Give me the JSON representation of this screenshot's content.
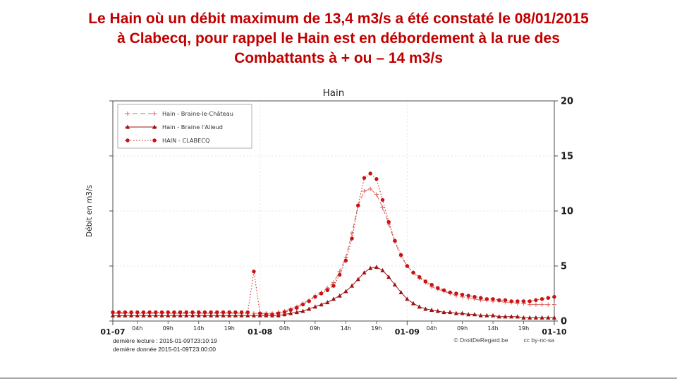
{
  "slide": {
    "title_lines": [
      "Le Hain où un débit maximum de 13,4 m3/s a été constaté le 08/01/2015",
      "à Clabecq, pour rappel le Hain est en débordement à la rue des",
      "Combattants à + ou – 14 m3/s"
    ],
    "title_color": "#C00000"
  },
  "chart_data": {
    "type": "line",
    "title": "Hain",
    "ylabel": "Débit en m3/s",
    "ylim": [
      0,
      20
    ],
    "yticks": [
      0,
      5,
      10,
      15,
      20
    ],
    "xlim": [
      0,
      72
    ],
    "x_unit": "hours from 2015-01-07 00:00",
    "grid": true,
    "legend_position": "top-left",
    "x_major_ticks": [
      {
        "x": 0,
        "label": "01-07"
      },
      {
        "x": 24,
        "label": "01-08"
      },
      {
        "x": 48,
        "label": "01-09"
      },
      {
        "x": 72,
        "label": "01-10"
      }
    ],
    "x_minor_ticks": [
      {
        "x": 4,
        "label": "04h"
      },
      {
        "x": 9,
        "label": "09h"
      },
      {
        "x": 14,
        "label": "14h"
      },
      {
        "x": 19,
        "label": "19h"
      },
      {
        "x": 28,
        "label": "04h"
      },
      {
        "x": 33,
        "label": "09h"
      },
      {
        "x": 38,
        "label": "14h"
      },
      {
        "x": 43,
        "label": "19h"
      },
      {
        "x": 52,
        "label": "04h"
      },
      {
        "x": 57,
        "label": "09h"
      },
      {
        "x": 62,
        "label": "14h"
      },
      {
        "x": 67,
        "label": "19h"
      }
    ],
    "x": [
      0,
      1,
      2,
      3,
      4,
      5,
      6,
      7,
      8,
      9,
      10,
      11,
      12,
      13,
      14,
      15,
      16,
      17,
      18,
      19,
      20,
      21,
      22,
      23,
      24,
      25,
      26,
      27,
      28,
      29,
      30,
      31,
      32,
      33,
      34,
      35,
      36,
      37,
      38,
      39,
      40,
      41,
      42,
      43,
      44,
      45,
      46,
      47,
      48,
      49,
      50,
      51,
      52,
      53,
      54,
      55,
      56,
      57,
      58,
      59,
      60,
      61,
      62,
      63,
      64,
      65,
      66,
      67,
      68,
      69,
      70,
      71,
      72
    ],
    "series": [
      {
        "name": "Hain - Braine-le-Château",
        "color": "#dd6a66",
        "marker": "plus",
        "line_style": "dashed",
        "values": [
          0.7,
          0.7,
          0.7,
          0.7,
          0.7,
          0.7,
          0.7,
          0.7,
          0.7,
          0.7,
          0.7,
          0.7,
          0.7,
          0.7,
          0.7,
          0.7,
          0.7,
          0.7,
          0.7,
          0.7,
          0.7,
          0.7,
          0.7,
          0.7,
          0.7,
          0.7,
          0.7,
          0.8,
          0.9,
          1.1,
          1.3,
          1.6,
          1.9,
          2.3,
          2.6,
          3.0,
          3.5,
          4.5,
          5.8,
          8.0,
          10.5,
          11.8,
          12.0,
          11.5,
          10.3,
          8.8,
          7.2,
          5.9,
          5.0,
          4.4,
          3.9,
          3.5,
          3.1,
          2.9,
          2.7,
          2.5,
          2.3,
          2.2,
          2.1,
          2.0,
          1.9,
          1.9,
          1.8,
          1.8,
          1.7,
          1.7,
          1.6,
          1.6,
          1.5,
          1.5,
          1.5,
          1.5,
          1.5
        ]
      },
      {
        "name": "Hain - Braine l'Alleud",
        "color": "#9b1313",
        "marker": "triangle",
        "line_style": "solid",
        "values": [
          0.5,
          0.5,
          0.5,
          0.5,
          0.5,
          0.5,
          0.5,
          0.5,
          0.5,
          0.5,
          0.5,
          0.5,
          0.5,
          0.5,
          0.5,
          0.5,
          0.5,
          0.5,
          0.5,
          0.5,
          0.5,
          0.5,
          0.5,
          0.5,
          0.5,
          0.5,
          0.5,
          0.5,
          0.6,
          0.7,
          0.8,
          0.9,
          1.1,
          1.3,
          1.5,
          1.7,
          2.0,
          2.3,
          2.7,
          3.2,
          3.8,
          4.4,
          4.8,
          4.9,
          4.6,
          4.0,
          3.3,
          2.6,
          2.0,
          1.6,
          1.3,
          1.1,
          1.0,
          0.9,
          0.8,
          0.8,
          0.7,
          0.7,
          0.6,
          0.6,
          0.5,
          0.5,
          0.5,
          0.4,
          0.4,
          0.4,
          0.4,
          0.3,
          0.3,
          0.3,
          0.3,
          0.3,
          0.3
        ]
      },
      {
        "name": "HAIN - CLABECQ",
        "color": "#cc1111",
        "marker": "circle",
        "line_style": "dotted",
        "values": [
          0.8,
          0.8,
          0.8,
          0.8,
          0.8,
          0.8,
          0.8,
          0.8,
          0.8,
          0.8,
          0.8,
          0.8,
          0.8,
          0.8,
          0.8,
          0.8,
          0.8,
          0.8,
          0.8,
          0.8,
          0.8,
          0.8,
          0.8,
          4.5,
          0.7,
          0.6,
          0.6,
          0.7,
          0.8,
          1.0,
          1.2,
          1.5,
          1.8,
          2.2,
          2.5,
          2.8,
          3.2,
          4.2,
          5.5,
          7.5,
          10.5,
          13.0,
          13.4,
          12.9,
          11.0,
          9.0,
          7.3,
          6.0,
          5.0,
          4.4,
          4.0,
          3.6,
          3.3,
          3.0,
          2.8,
          2.6,
          2.5,
          2.4,
          2.3,
          2.2,
          2.1,
          2.0,
          2.0,
          1.9,
          1.9,
          1.8,
          1.8,
          1.8,
          1.8,
          1.9,
          2.0,
          2.1,
          2.2
        ]
      }
    ],
    "max_annotation": "débit maximum 13,4 m3/s le 08/01/2015 à Clabecq"
  },
  "footer": {
    "last_reading": "dernière lecture : 2015-01-09T23:10:19",
    "last_data": "dernière donnée  2015-01-09T23:00:00",
    "copyright": "© DroitDeRegard.be",
    "license": "cc by-nc-sa"
  }
}
